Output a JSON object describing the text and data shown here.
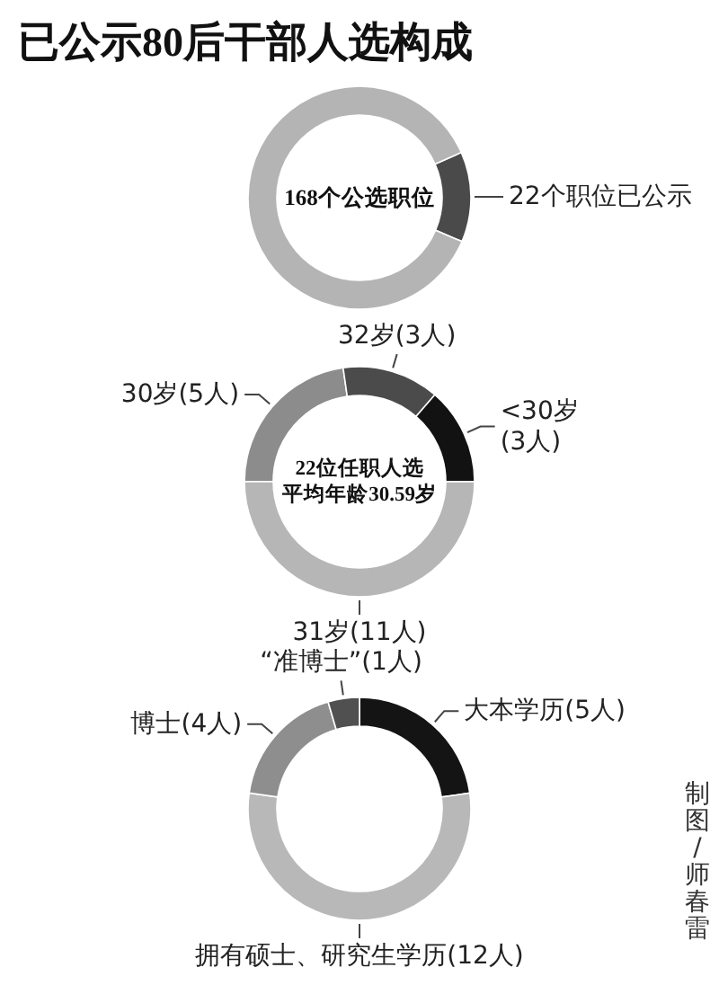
{
  "chart_data": [
    {
      "type": "donut",
      "title": "已公示80后干部人选构成",
      "subtitle": "168个公选职位",
      "categories": [
        "22个职位已公示",
        null
      ],
      "values": [
        22,
        146
      ],
      "colors": [
        "#4a4a4a",
        "#b4b4b4"
      ]
    },
    {
      "type": "donut",
      "subtitle": "22位任职人选平均年龄30.59岁",
      "categories": [
        "30岁(5人)",
        "32岁(3人)",
        "<30岁(3人)",
        "31岁(11人)"
      ],
      "values": [
        5,
        3,
        3,
        11
      ],
      "colors": [
        "#8c8c8c",
        "#4b4b4b",
        "#121212",
        "#b6b6b6"
      ]
    },
    {
      "type": "donut",
      "categories": [
        "大本学历(5人)",
        "拥有硕士、研究生学历(12人)",
        "博士(4人)",
        "“准博士”(1人)"
      ],
      "values": [
        5,
        12,
        4,
        1
      ],
      "colors": [
        "#141414",
        "#b8b8b8",
        "#8e8e8e",
        "#505050"
      ],
      "annotations": [
        "制图/师春雷"
      ]
    }
  ]
}
